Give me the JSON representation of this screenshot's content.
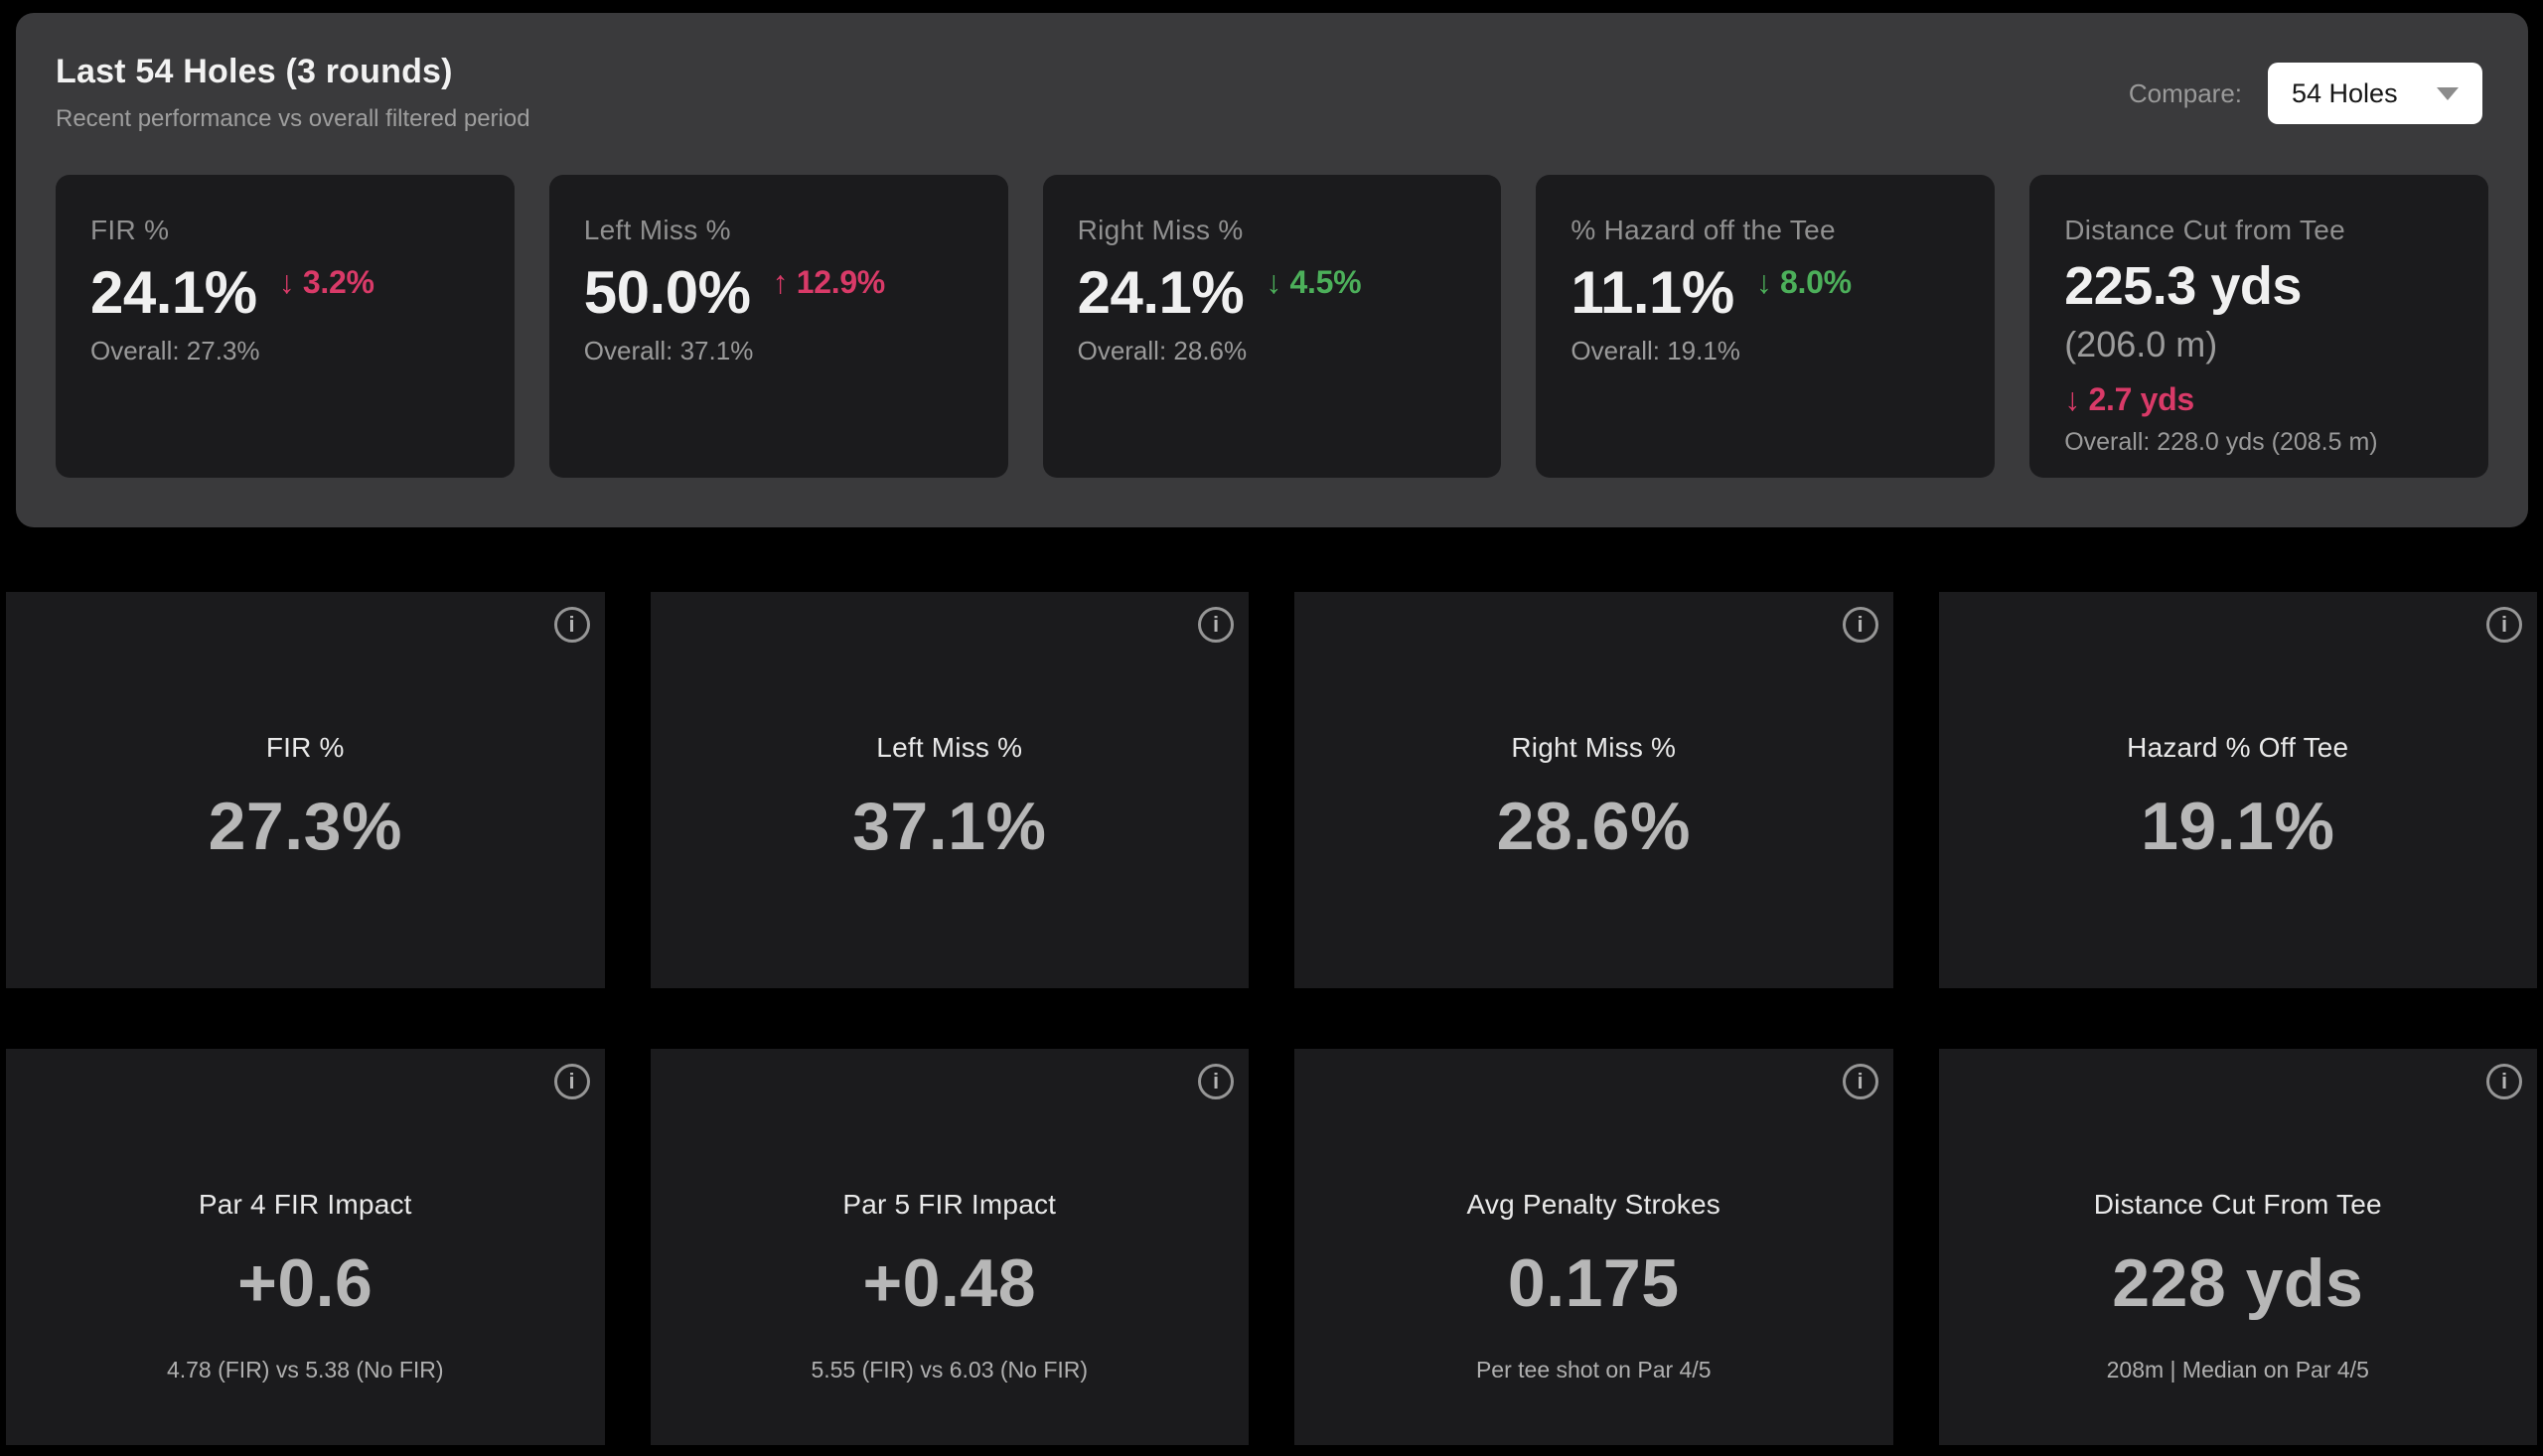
{
  "colors": {
    "page_bg": "#000000",
    "panel_bg": "#3a3a3c",
    "card_bg": "#1b1b1d",
    "negative_accent": "#d93a68",
    "positive_accent": "#4caf5a"
  },
  "icons": {
    "info": "i"
  },
  "summary_panel": {
    "title": "Last 54 Holes (3 rounds)",
    "subtitle": "Recent performance vs overall filtered period",
    "compare_label": "Compare:",
    "compare_value": "54 Holes",
    "stats": [
      {
        "label": "FIR %",
        "value": "24.1%",
        "delta": "↓ 3.2%",
        "delta_dir": "negative",
        "overall": "Overall: 27.3%"
      },
      {
        "label": "Left Miss %",
        "value": "50.0%",
        "delta": "↑ 12.9%",
        "delta_dir": "negative",
        "overall": "Overall: 37.1%"
      },
      {
        "label": "Right Miss %",
        "value": "24.1%",
        "delta": "↓ 4.5%",
        "delta_dir": "positive",
        "overall": "Overall: 28.6%"
      },
      {
        "label": "% Hazard off the Tee",
        "value": "11.1%",
        "delta": "↓ 8.0%",
        "delta_dir": "positive",
        "overall": "Overall: 19.1%"
      },
      {
        "label": "Distance Cut from Tee",
        "value": "225.3 yds",
        "secondary": "(206.0 m)",
        "delta": "↓ 2.7 yds",
        "delta_dir": "negative",
        "overall": "Overall: 228.0 yds (208.5 m)"
      }
    ]
  },
  "metrics_row_1": [
    {
      "label": "FIR %",
      "value": "27.3%"
    },
    {
      "label": "Left Miss %",
      "value": "37.1%"
    },
    {
      "label": "Right Miss %",
      "value": "28.6%"
    },
    {
      "label": "Hazard % Off Tee",
      "value": "19.1%"
    }
  ],
  "metrics_row_2": [
    {
      "label": "Par 4 FIR Impact",
      "value": "+0.6",
      "caption": "4.78 (FIR) vs 5.38 (No FIR)"
    },
    {
      "label": "Par 5 FIR Impact",
      "value": "+0.48",
      "caption": "5.55 (FIR) vs 6.03 (No FIR)"
    },
    {
      "label": "Avg Penalty Strokes",
      "value": "0.175",
      "caption": "Per tee shot on Par 4/5"
    },
    {
      "label": "Distance Cut From Tee",
      "value": "228 yds",
      "caption": "208m | Median on Par 4/5"
    }
  ]
}
